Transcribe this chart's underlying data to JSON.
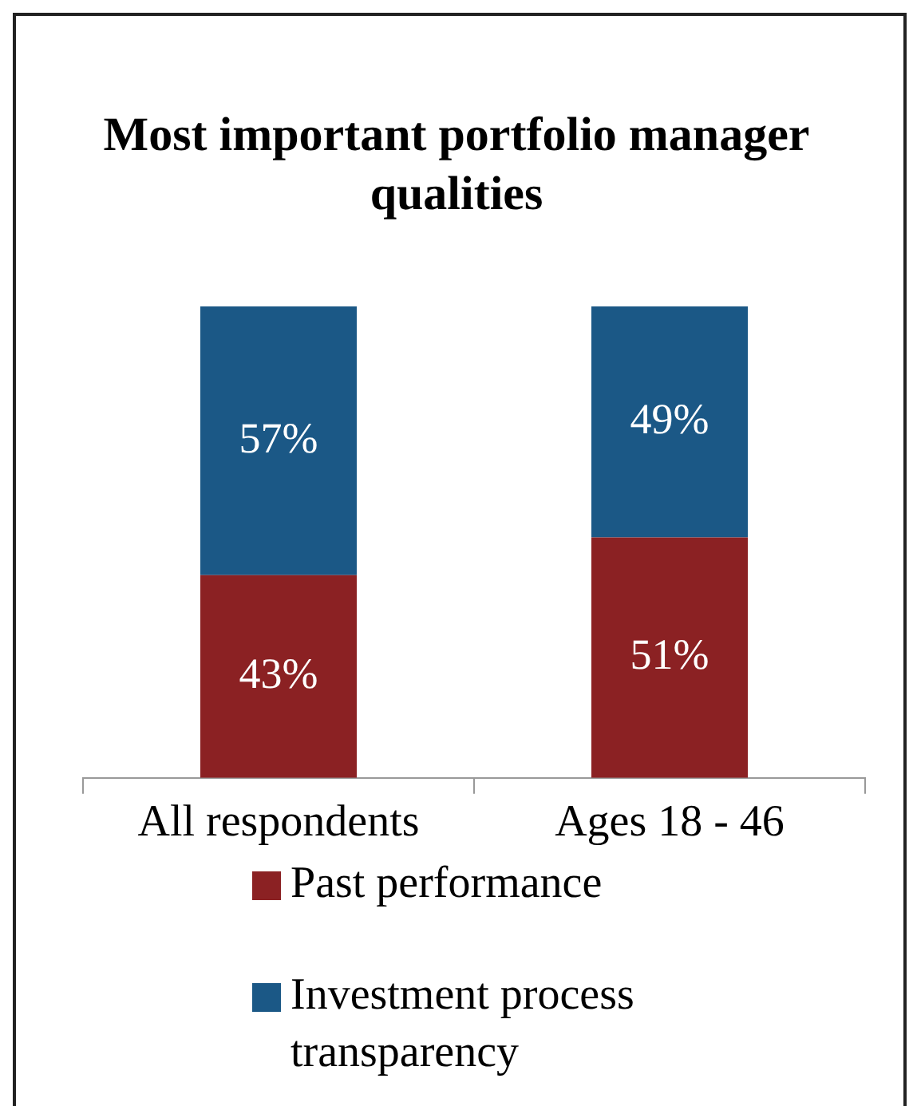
{
  "chart_data": {
    "type": "bar",
    "title": "Most important portfolio manager qualities",
    "categories": [
      "All respondents",
      "Ages 18 - 46"
    ],
    "series": [
      {
        "name": "Past performance",
        "color": "#8b2123",
        "values": [
          43,
          51
        ],
        "value_labels": [
          "43%",
          "51%"
        ]
      },
      {
        "name": "Investment process transparency",
        "color": "#1b5886",
        "values": [
          57,
          49
        ],
        "value_labels": [
          "57%",
          "49%"
        ]
      }
    ],
    "stacked": true,
    "ylim": [
      0,
      100
    ],
    "tick_labels": "x",
    "grid": false,
    "legend": "bottom"
  }
}
